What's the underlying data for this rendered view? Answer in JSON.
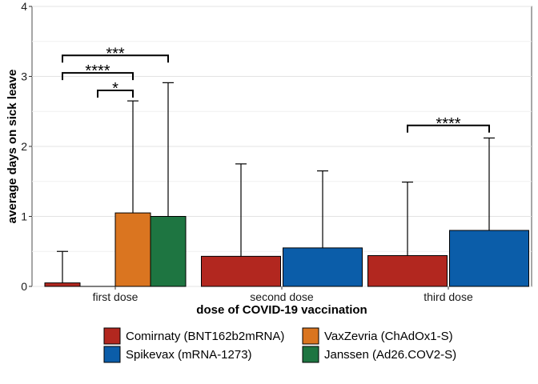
{
  "chart_data": {
    "type": "bar",
    "title": "",
    "xlabel": "dose of COVID-19 vaccination",
    "ylabel": "average days on sick leave",
    "ylim": [
      0,
      4
    ],
    "yticks": [
      "0",
      "1",
      "2",
      "3",
      "4"
    ],
    "grid": true,
    "legend_position": "bottom",
    "categories": [
      "first dose",
      "second dose",
      "third dose"
    ],
    "series": [
      {
        "name": "Comirnaty (BNT162b2mRNA)",
        "color": "#B2271F",
        "values": [
          0.05,
          0.43,
          0.44
        ],
        "error_upper": [
          0.5,
          1.75,
          1.49
        ]
      },
      {
        "name": "Spikevax (mRNA-1273)",
        "color": "#0B5DA9",
        "values": [
          0.0,
          0.55,
          0.8
        ],
        "error_upper": [
          null,
          1.65,
          2.12
        ]
      },
      {
        "name": "VaxZevria (ChAdOx1-S)",
        "color": "#DA7520",
        "values": [
          1.05,
          null,
          null
        ],
        "error_upper": [
          2.65,
          null,
          null
        ]
      },
      {
        "name": "Janssen (Ad26.COV2-S)",
        "color": "#1E7541",
        "values": [
          1.0,
          null,
          null
        ],
        "error_upper": [
          2.91,
          null,
          null
        ]
      }
    ],
    "significance": [
      {
        "category": "first dose",
        "from_series": 1,
        "to_series": 2,
        "y": 2.8,
        "label": "*"
      },
      {
        "category": "first dose",
        "from_series": 0,
        "to_series": 2,
        "y": 3.05,
        "label": "****"
      },
      {
        "category": "first dose",
        "from_series": 0,
        "to_series": 3,
        "y": 3.3,
        "label": "***"
      },
      {
        "category": "third dose",
        "from_series": 0,
        "to_series": 1,
        "y": 2.3,
        "label": "****"
      }
    ]
  }
}
